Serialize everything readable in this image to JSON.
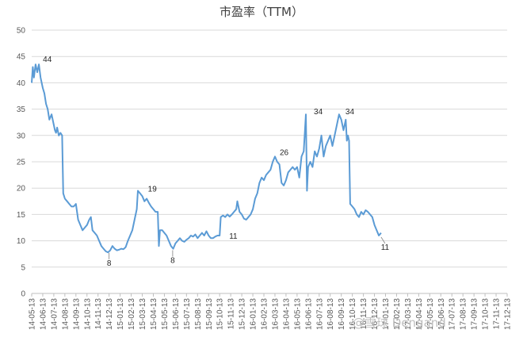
{
  "chart_data": {
    "type": "line",
    "title": "市盈率（TTM）",
    "xlabel": "",
    "ylabel": "",
    "ylim": [
      0,
      50
    ],
    "yticks": [
      "0",
      "5",
      "10",
      "15",
      "20",
      "25",
      "30",
      "35",
      "40",
      "45",
      "50"
    ],
    "grid": true,
    "categories": [
      "14-05-13",
      "14-06-13",
      "14-07-13",
      "14-08-13",
      "14-09-13",
      "14-10-13",
      "14-11-13",
      "14-12-13",
      "15-01-13",
      "15-02-13",
      "15-03-13",
      "15-04-13",
      "15-05-13",
      "15-06-13",
      "15-07-13",
      "15-08-13",
      "15-09-13",
      "15-10-13",
      "15-11-13",
      "15-12-13",
      "16-01-13",
      "16-02-13",
      "16-03-13",
      "16-04-13",
      "16-05-13",
      "16-06-13",
      "16-07-13",
      "16-08-13",
      "16-09-13",
      "16-10-13",
      "16-11-13",
      "16-12-13",
      "17-01-13",
      "17-02-13",
      "17-03-13",
      "17-04-13",
      "17-05-13",
      "17-06-13",
      "17-07-13",
      "17-08-13",
      "17-09-13",
      "17-10-13",
      "17-11-13",
      "17-12-13"
    ],
    "series": [
      {
        "color": "#5b9bd5",
        "points": [
          [
            0,
            40
          ],
          [
            0.1,
            43
          ],
          [
            0.2,
            41
          ],
          [
            0.35,
            43.5
          ],
          [
            0.5,
            42
          ],
          [
            0.65,
            43.5
          ],
          [
            0.8,
            41
          ],
          [
            1,
            39
          ],
          [
            1.15,
            38
          ],
          [
            1.3,
            36
          ],
          [
            1.45,
            35
          ],
          [
            1.6,
            33
          ],
          [
            1.8,
            34
          ],
          [
            2,
            32
          ],
          [
            2.1,
            31
          ],
          [
            2.2,
            30.5
          ],
          [
            2.3,
            31.5
          ],
          [
            2.45,
            30
          ],
          [
            2.6,
            30.5
          ],
          [
            2.75,
            30
          ],
          [
            2.85,
            19
          ],
          [
            3,
            18
          ],
          [
            3.2,
            17.5
          ],
          [
            3.4,
            17
          ],
          [
            3.6,
            16.5
          ],
          [
            3.8,
            16.5
          ],
          [
            4,
            17
          ],
          [
            4.2,
            14
          ],
          [
            4.4,
            13
          ],
          [
            4.6,
            12
          ],
          [
            4.8,
            12.5
          ],
          [
            5,
            13
          ],
          [
            5.2,
            14
          ],
          [
            5.35,
            14.5
          ],
          [
            5.5,
            12
          ],
          [
            5.7,
            11.5
          ],
          [
            5.9,
            11
          ],
          [
            6.1,
            10
          ],
          [
            6.3,
            9
          ],
          [
            6.5,
            8.5
          ],
          [
            6.7,
            8
          ],
          [
            6.9,
            7.8
          ],
          [
            7.1,
            8.2
          ],
          [
            7.3,
            9
          ],
          [
            7.5,
            8.5
          ],
          [
            7.7,
            8.2
          ],
          [
            7.9,
            8.3
          ],
          [
            8.1,
            8.5
          ],
          [
            8.3,
            8.4
          ],
          [
            8.5,
            8.8
          ],
          [
            8.7,
            10
          ],
          [
            8.9,
            11
          ],
          [
            9.1,
            12
          ],
          [
            9.3,
            14
          ],
          [
            9.5,
            16
          ],
          [
            9.6,
            19.5
          ],
          [
            9.8,
            19
          ],
          [
            10,
            18.5
          ],
          [
            10.2,
            17.5
          ],
          [
            10.4,
            18
          ],
          [
            10.6,
            17.2
          ],
          [
            10.8,
            16.5
          ],
          [
            11,
            16
          ],
          [
            11.2,
            15.5
          ],
          [
            11.4,
            15.5
          ],
          [
            11.5,
            9
          ],
          [
            11.6,
            12
          ],
          [
            11.8,
            12
          ],
          [
            12,
            11.5
          ],
          [
            12.2,
            11
          ],
          [
            12.4,
            10
          ],
          [
            12.6,
            9
          ],
          [
            12.8,
            8.5
          ],
          [
            13,
            9.5
          ],
          [
            13.2,
            10
          ],
          [
            13.4,
            10.5
          ],
          [
            13.6,
            10
          ],
          [
            13.8,
            9.8
          ],
          [
            14,
            10.2
          ],
          [
            14.2,
            10.5
          ],
          [
            14.4,
            11
          ],
          [
            14.6,
            10.8
          ],
          [
            14.8,
            11.2
          ],
          [
            15,
            10.5
          ],
          [
            15.2,
            11
          ],
          [
            15.4,
            11.5
          ],
          [
            15.6,
            11
          ],
          [
            15.8,
            11.8
          ],
          [
            16,
            11
          ],
          [
            16.2,
            10.5
          ],
          [
            16.4,
            10.5
          ],
          [
            16.6,
            10.8
          ],
          [
            16.8,
            11
          ],
          [
            17,
            11
          ],
          [
            17.1,
            14.5
          ],
          [
            17.3,
            14.8
          ],
          [
            17.5,
            14.5
          ],
          [
            17.7,
            15
          ],
          [
            17.9,
            14.6
          ],
          [
            18.1,
            15
          ],
          [
            18.3,
            15.5
          ],
          [
            18.5,
            16
          ],
          [
            18.6,
            17.5
          ],
          [
            18.8,
            15.5
          ],
          [
            19,
            15
          ],
          [
            19.2,
            14.2
          ],
          [
            19.4,
            14
          ],
          [
            19.6,
            14.5
          ],
          [
            19.8,
            15
          ],
          [
            20,
            16
          ],
          [
            20.2,
            18
          ],
          [
            20.4,
            19
          ],
          [
            20.6,
            21
          ],
          [
            20.8,
            22
          ],
          [
            21,
            21.5
          ],
          [
            21.2,
            22.5
          ],
          [
            21.4,
            23
          ],
          [
            21.6,
            23.5
          ],
          [
            21.8,
            25
          ],
          [
            22,
            26
          ],
          [
            22.2,
            25
          ],
          [
            22.4,
            24.5
          ],
          [
            22.6,
            21
          ],
          [
            22.8,
            20.5
          ],
          [
            23,
            21.5
          ],
          [
            23.2,
            23
          ],
          [
            23.4,
            23.5
          ],
          [
            23.6,
            24
          ],
          [
            23.8,
            23.5
          ],
          [
            24,
            24
          ],
          [
            24.2,
            22
          ],
          [
            24.4,
            26
          ],
          [
            24.6,
            27
          ],
          [
            24.8,
            34
          ],
          [
            24.9,
            19.5
          ],
          [
            25,
            24
          ],
          [
            25.2,
            25
          ],
          [
            25.4,
            24
          ],
          [
            25.6,
            27
          ],
          [
            25.8,
            26
          ],
          [
            26,
            27.5
          ],
          [
            26.2,
            30
          ],
          [
            26.4,
            26
          ],
          [
            26.6,
            28
          ],
          [
            26.8,
            29
          ],
          [
            27,
            30
          ],
          [
            27.2,
            28
          ],
          [
            27.4,
            30
          ],
          [
            27.6,
            32
          ],
          [
            27.8,
            34
          ],
          [
            28,
            33
          ],
          [
            28.2,
            31
          ],
          [
            28.4,
            33
          ],
          [
            28.5,
            29
          ],
          [
            28.6,
            30
          ],
          [
            28.7,
            29
          ],
          [
            28.8,
            17
          ],
          [
            29,
            16.5
          ],
          [
            29.2,
            16
          ],
          [
            29.4,
            15
          ],
          [
            29.6,
            14.5
          ],
          [
            29.8,
            15.5
          ],
          [
            30,
            15
          ],
          [
            30.2,
            15.8
          ],
          [
            30.4,
            15.5
          ],
          [
            30.6,
            15
          ],
          [
            30.8,
            14.5
          ],
          [
            31,
            13
          ],
          [
            31.2,
            12
          ],
          [
            31.4,
            11
          ],
          [
            31.6,
            11.5
          ]
        ]
      }
    ],
    "annotations": [
      "44",
      "8",
      "19",
      "8",
      "11",
      "26",
      "34",
      "34",
      "11"
    ]
  },
  "watermark": "@雪球 Dengand"
}
